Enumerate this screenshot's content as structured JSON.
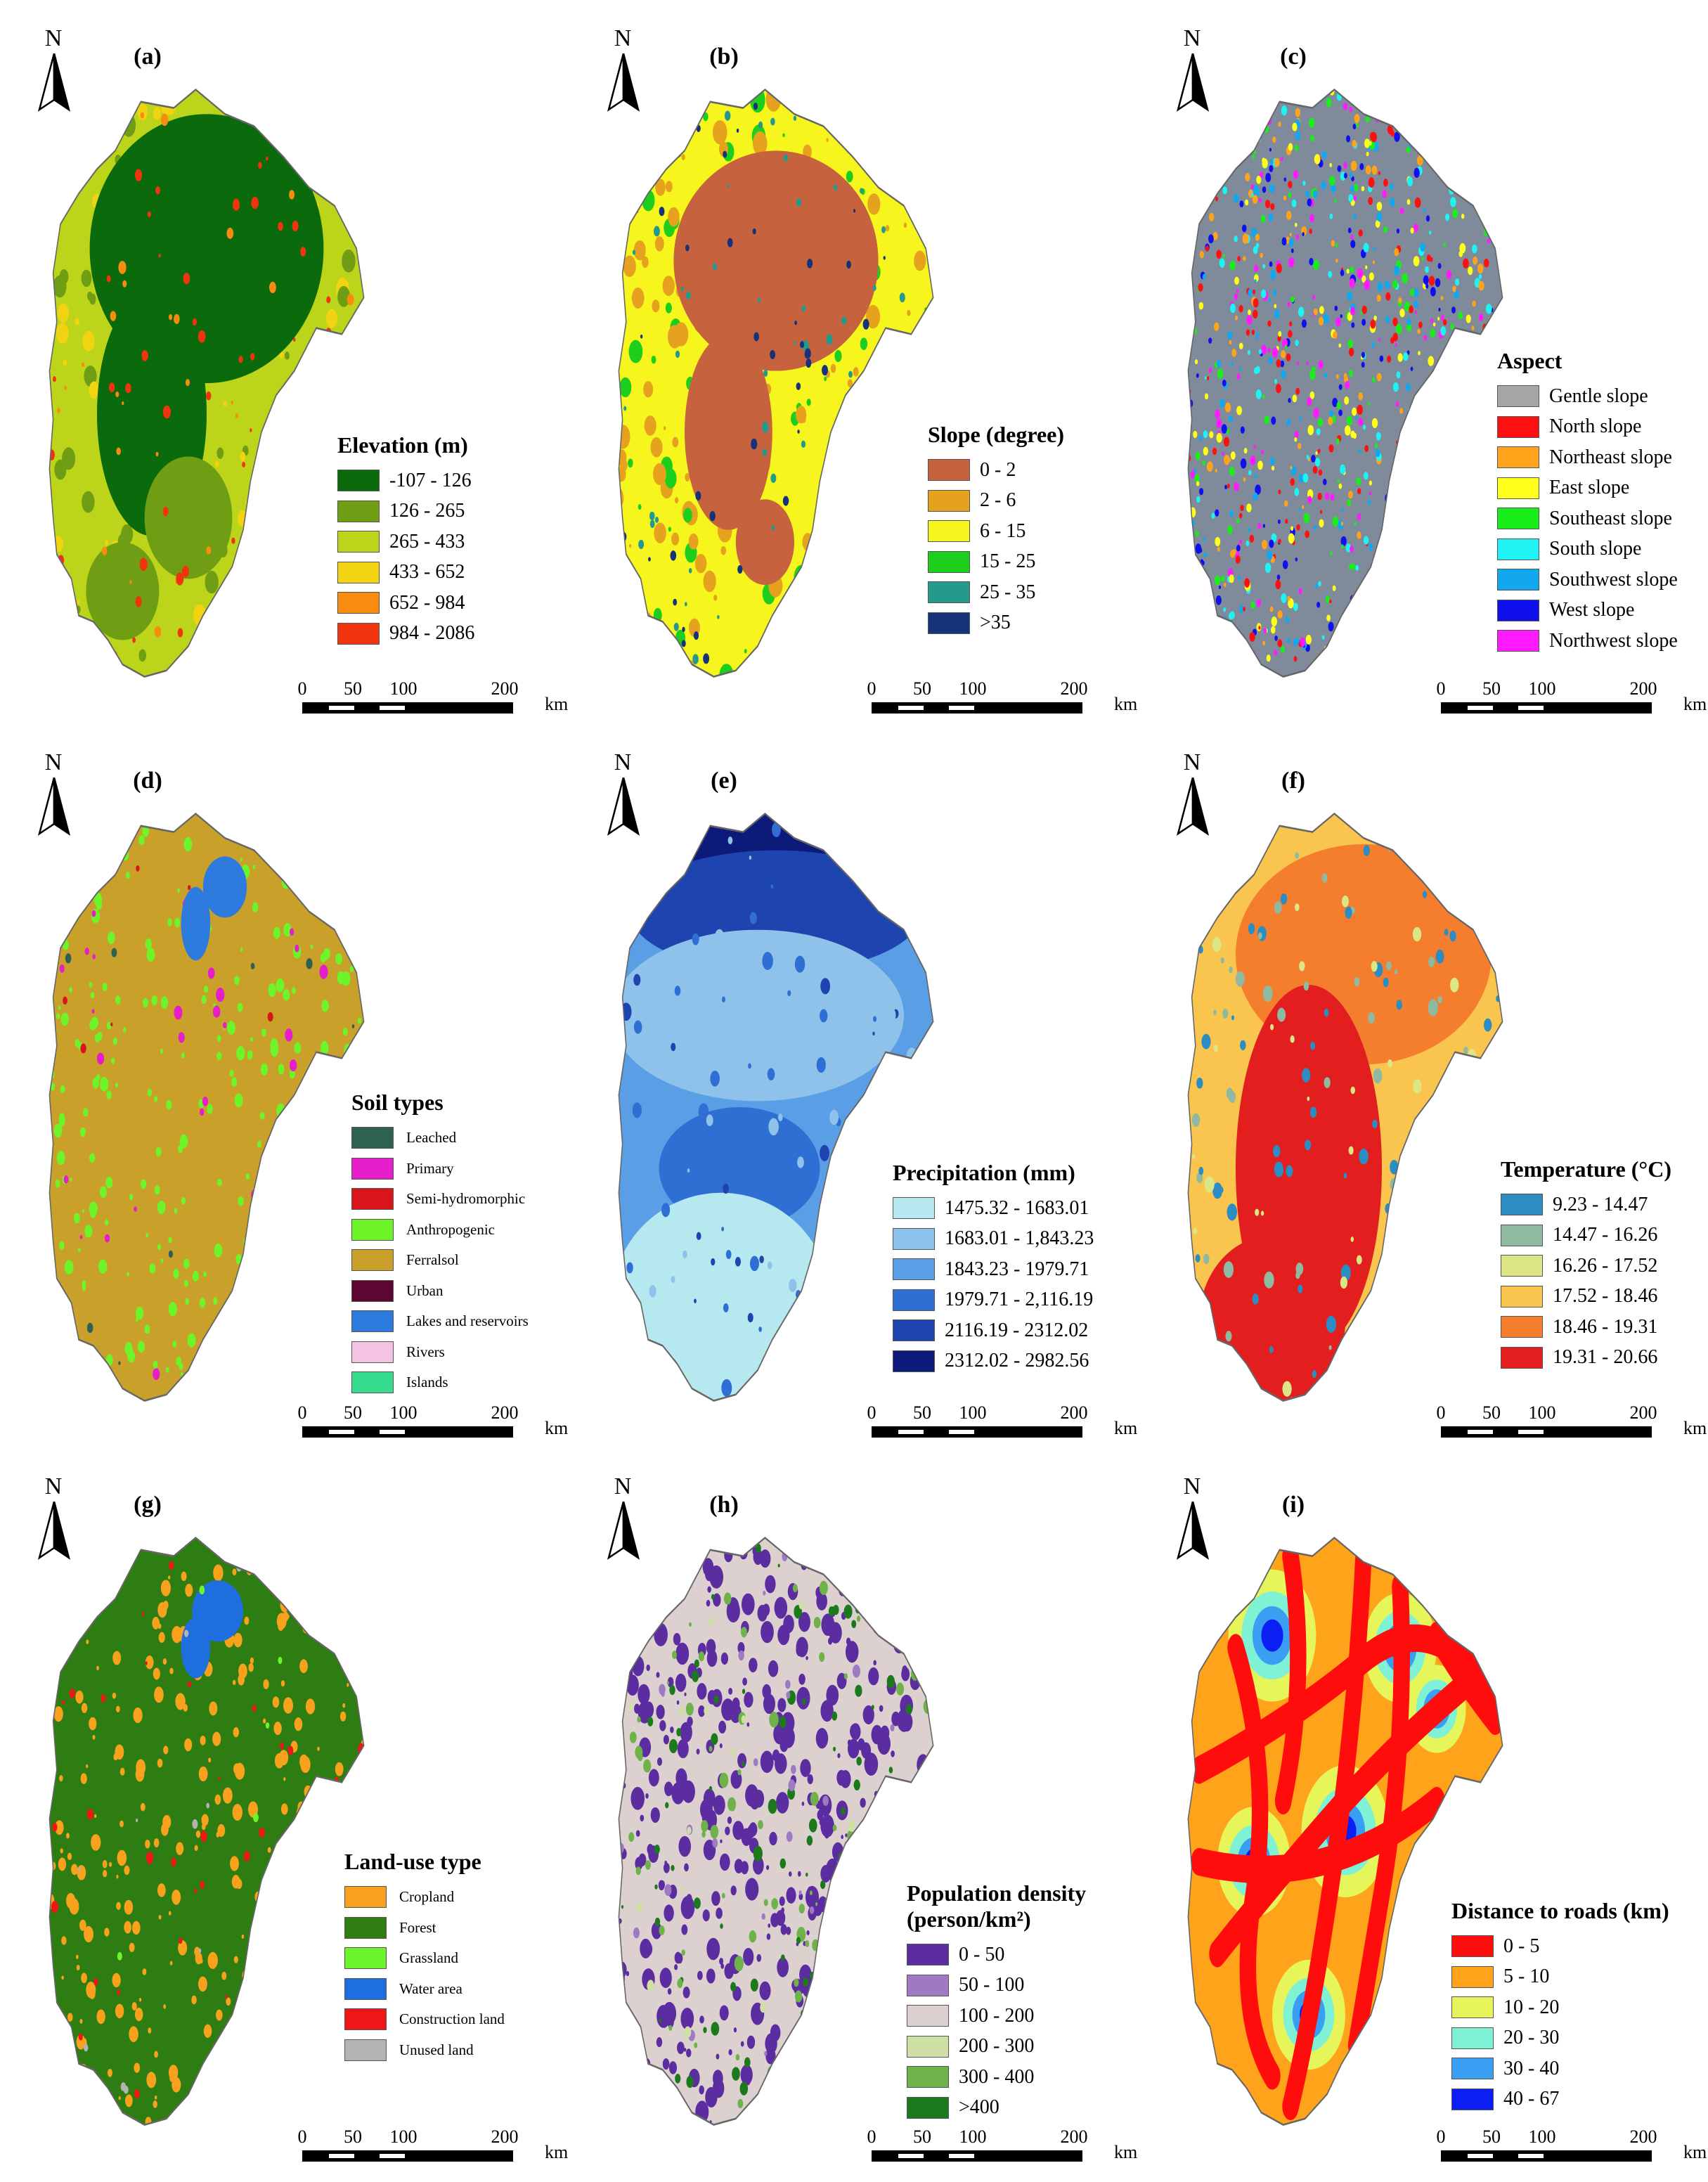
{
  "north_label": "N",
  "scalebar": {
    "ticks": [
      "0",
      "50",
      "100",
      "200"
    ],
    "unit": "km"
  },
  "panels": [
    {
      "id": "a",
      "letter": "(a)",
      "map_type": "elevation",
      "legend": {
        "title": "Elevation (m)",
        "items": [
          {
            "label": "-107 - 126",
            "color": "#0b6a0b"
          },
          {
            "label": "126 - 265",
            "color": "#6f9d14"
          },
          {
            "label": "265 - 433",
            "color": "#bcd41a"
          },
          {
            "label": "433 - 652",
            "color": "#f2d312"
          },
          {
            "label": "652 - 984",
            "color": "#f98b0f"
          },
          {
            "label": "984 - 2086",
            "color": "#f2330f"
          }
        ]
      }
    },
    {
      "id": "b",
      "letter": "(b)",
      "map_type": "slope",
      "legend": {
        "title": "Slope (degree)",
        "items": [
          {
            "label": "0 - 2",
            "color": "#c7623e"
          },
          {
            "label": "2 - 6",
            "color": "#e6a21f"
          },
          {
            "label": "6 - 15",
            "color": "#f7f51e"
          },
          {
            "label": "15 - 25",
            "color": "#1dce1d"
          },
          {
            "label": "25 - 35",
            "color": "#239a8c"
          },
          {
            "label": ">35",
            "color": "#163279"
          }
        ]
      }
    },
    {
      "id": "c",
      "letter": "(c)",
      "map_type": "aspect",
      "legend": {
        "title": "Aspect",
        "items": [
          {
            "label": "Gentle slope",
            "color": "#a6a6a6"
          },
          {
            "label": "North slope",
            "color": "#ff1010"
          },
          {
            "label": "Northeast slope",
            "color": "#ffa31a"
          },
          {
            "label": "East slope",
            "color": "#ffff1a"
          },
          {
            "label": "Southeast slope",
            "color": "#1aee1a"
          },
          {
            "label": "South slope",
            "color": "#1ef2f2"
          },
          {
            "label": "Southwest slope",
            "color": "#12a8f0"
          },
          {
            "label": "West slope",
            "color": "#1010ee"
          },
          {
            "label": "Northwest slope",
            "color": "#ff1aff"
          }
        ]
      }
    },
    {
      "id": "d",
      "letter": "(d)",
      "map_type": "soil",
      "legend": {
        "title": "Soil types",
        "small": true,
        "items": [
          {
            "label": "Leached",
            "color": "#2f6152"
          },
          {
            "label": "Primary",
            "color": "#e61ec9"
          },
          {
            "label": "Semi-hydromorphic",
            "color": "#d9141a"
          },
          {
            "label": "Anthropogenic",
            "color": "#6ef52a"
          },
          {
            "label": "Ferralsol",
            "color": "#c8a02a"
          },
          {
            "label": "Urban",
            "color": "#5c0632"
          },
          {
            "label": "Lakes and reservoirs",
            "color": "#2e7be0"
          },
          {
            "label": "Rivers",
            "color": "#f4c2e2"
          },
          {
            "label": "Islands",
            "color": "#36dd8e"
          }
        ]
      }
    },
    {
      "id": "e",
      "letter": "(e)",
      "map_type": "precipitation",
      "legend": {
        "title": "Precipitation (mm)",
        "items": [
          {
            "label": "1475.32 - 1683.01",
            "color": "#b6e8ef"
          },
          {
            "label": "1683.01 - 1,843.23",
            "color": "#8ec2ea"
          },
          {
            "label": "1843.23 - 1979.71",
            "color": "#5a9ee6"
          },
          {
            "label": "1979.71 - 2,116.19",
            "color": "#2f6fd4"
          },
          {
            "label": "2116.19 - 2312.02",
            "color": "#1e44b0"
          },
          {
            "label": "2312.02 - 2982.56",
            "color": "#0c1a7a"
          }
        ]
      }
    },
    {
      "id": "f",
      "letter": "(f)",
      "map_type": "temperature",
      "legend": {
        "title": "Temperature (°C)",
        "items": [
          {
            "label": "9.23 - 14.47",
            "color": "#2b8dc2"
          },
          {
            "label": "14.47 - 16.26",
            "color": "#8fb9a0"
          },
          {
            "label": "16.26 - 17.52",
            "color": "#dde685"
          },
          {
            "label": "17.52 - 18.46",
            "color": "#f9c54f"
          },
          {
            "label": "18.46 - 19.31",
            "color": "#f47d2e"
          },
          {
            "label": "19.31 - 20.66",
            "color": "#e21e1e"
          }
        ]
      }
    },
    {
      "id": "g",
      "letter": "(g)",
      "map_type": "landuse",
      "legend": {
        "title": "Land-use type",
        "small": true,
        "items": [
          {
            "label": "Cropland",
            "color": "#f7a11c"
          },
          {
            "label": "Forest",
            "color": "#2e7d12"
          },
          {
            "label": "Grassland",
            "color": "#6cf52a"
          },
          {
            "label": "Water area",
            "color": "#1f6ee0"
          },
          {
            "label": "Construction land",
            "color": "#ee1616"
          },
          {
            "label": "Unused land",
            "color": "#b3b3b3"
          }
        ]
      }
    },
    {
      "id": "h",
      "letter": "(h)",
      "map_type": "population",
      "legend": {
        "title": "Population density",
        "title2": "(person/km²)",
        "items": [
          {
            "label": "0 - 50",
            "color": "#5b2da0"
          },
          {
            "label": "50 - 100",
            "color": "#9d7ac2"
          },
          {
            "label": "100 - 200",
            "color": "#ddd1cf"
          },
          {
            "label": "200 - 300",
            "color": "#cfe0a4"
          },
          {
            "label": "300 - 400",
            "color": "#6fb24a"
          },
          {
            "label": ">400",
            "color": "#1c7a1c"
          }
        ]
      }
    },
    {
      "id": "i",
      "letter": "(i)",
      "map_type": "roads",
      "legend": {
        "title": "Distance to roads (km)",
        "items": [
          {
            "label": "0 - 5",
            "color": "#ff0d0d"
          },
          {
            "label": "5 - 10",
            "color": "#ffa31a"
          },
          {
            "label": "10 - 20",
            "color": "#e6f55a"
          },
          {
            "label": "20 - 30",
            "color": "#7ff2d6"
          },
          {
            "label": "30 - 40",
            "color": "#3a9ef2"
          },
          {
            "label": "40 - 67",
            "color": "#0b1ff5"
          }
        ]
      }
    }
  ]
}
